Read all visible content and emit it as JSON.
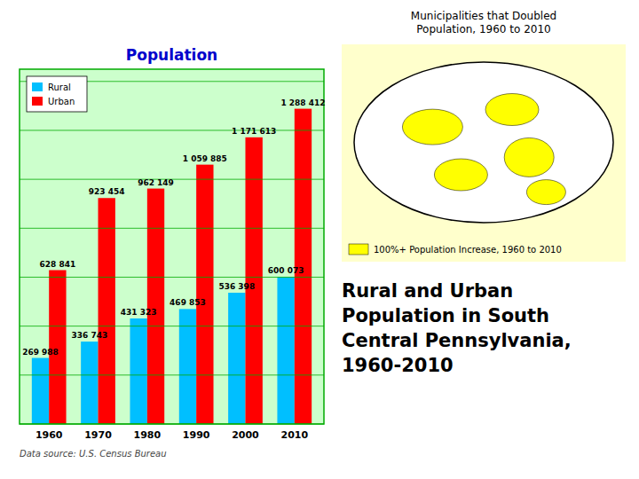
{
  "chart_data": {
    "type": "bar",
    "title": "Population",
    "categories": [
      "1960",
      "1970",
      "1980",
      "1990",
      "2000",
      "2010"
    ],
    "series": [
      {
        "name": "Rural",
        "color": "#00BFFF",
        "values": [
          269988,
          336743,
          431323,
          469853,
          536398,
          600073
        ],
        "value_labels": [
          "269 988",
          "336 743",
          "431 323",
          "469 853",
          "536 398",
          "600 073"
        ]
      },
      {
        "name": "Urban",
        "color": "#FF0000",
        "values": [
          628841,
          923454,
          962149,
          1059885,
          1171613,
          1288412
        ],
        "value_labels": [
          "628 841",
          "923 454",
          "962 149",
          "1 059 885",
          "1 171 613",
          "1 288 412"
        ]
      }
    ],
    "ylim": [
      0,
      1450000
    ],
    "yticks": [
      0,
      200000,
      400000,
      600000,
      800000,
      1000000,
      1200000,
      1400000
    ],
    "grid": true,
    "tick_labels": "x",
    "data_labels": true,
    "legend": "upper left",
    "annotations": [
      "Municipalities that Doubled\nPopulation, 1960 to 2010",
      "Data source: U.S. Census Bureau",
      "Rural and Urban\nPopulation in South\nCentral Pennsylvania,\n1960-2010",
      "100%+ Population Increase, 1960 to 2010"
    ]
  }
}
